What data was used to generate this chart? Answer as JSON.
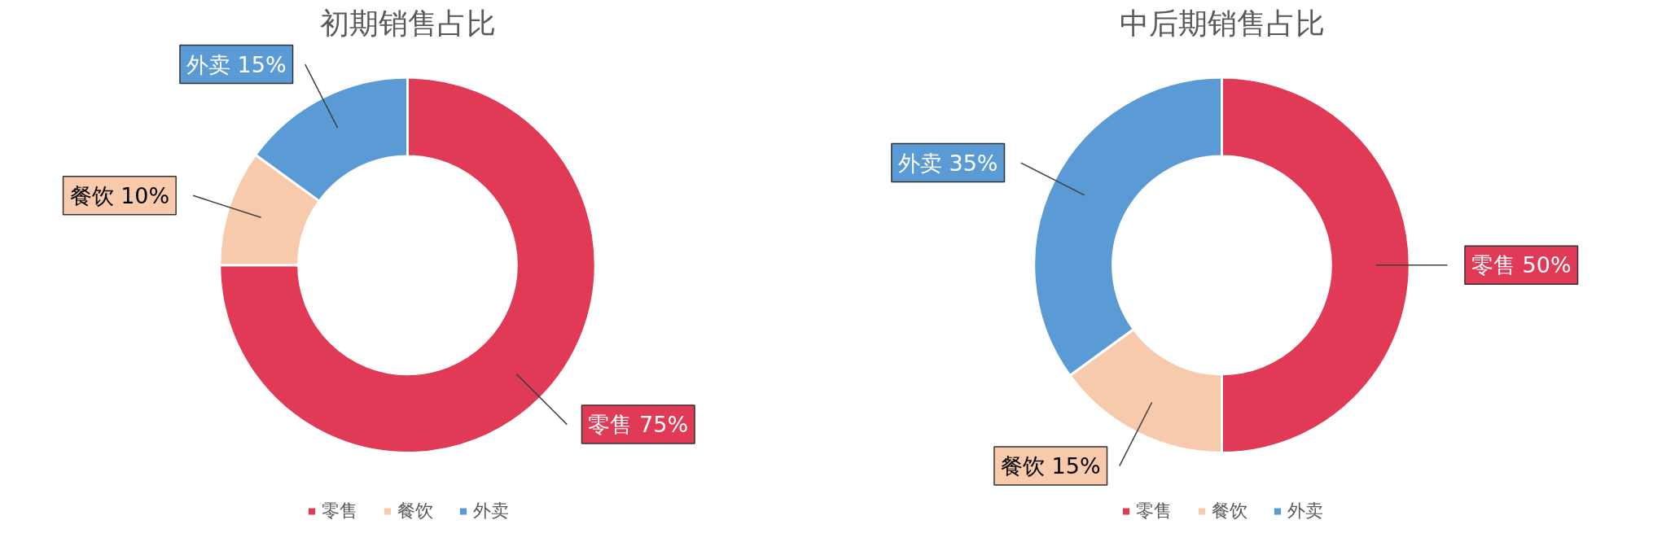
{
  "chart_data": [
    {
      "type": "donut",
      "title": "初期销售占比",
      "categories": [
        "零售",
        "餐饮",
        "外卖"
      ],
      "values": [
        75,
        10,
        15
      ],
      "colors": [
        "#e03a57",
        "#f7caac",
        "#5b9bd5"
      ],
      "value_labels": [
        "零售 75%",
        "餐饮 10%",
        "外卖 15%"
      ],
      "legend": "bottom"
    },
    {
      "type": "donut",
      "title": "中后期销售占比",
      "categories": [
        "零售",
        "餐饮",
        "外卖"
      ],
      "values": [
        50,
        15,
        35
      ],
      "colors": [
        "#e03a57",
        "#f7caac",
        "#5b9bd5"
      ],
      "value_labels": [
        "零售 50%",
        "餐饮 15%",
        "外卖 35%"
      ],
      "legend": "bottom"
    }
  ]
}
